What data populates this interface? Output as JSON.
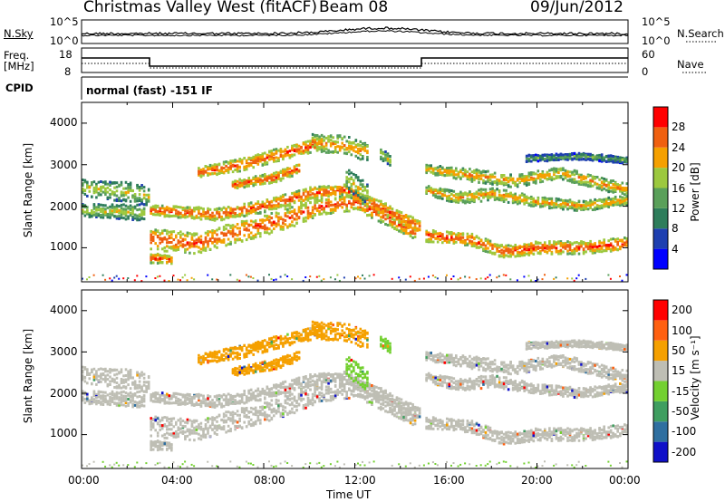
{
  "header": {
    "station": "Christmas Valley West (fitACF)",
    "beam": "Beam 08",
    "date": "09/Jun/2012"
  },
  "top_panels": {
    "nsky_label": "N.Sky",
    "nsearch_label": "N.Search",
    "noise_ticks_left": [
      "10^5",
      "10^0"
    ],
    "noise_ticks_right": [
      "10^5",
      "10^0"
    ],
    "freq_label_1": "Freq.",
    "freq_label_2": "[MHz]",
    "freq_ticks": [
      "18",
      "8"
    ],
    "nave_label": "Nave",
    "nave_ticks": [
      "60",
      "0"
    ],
    "cpid_label": "CPID",
    "cpid_text": "normal (fast) -151 IF"
  },
  "chart_data": [
    {
      "type": "heatmap",
      "name": "power",
      "ylabel": "Slant Range [km]",
      "y_ticks": [
        "4000",
        "3000",
        "2000",
        "1000"
      ],
      "ylim": [
        180,
        4500
      ],
      "colorbar_label": "Power [dB]",
      "colorbar_ticks": [
        "28",
        "24",
        "20",
        "16",
        "12",
        "8",
        "4"
      ],
      "colors": [
        "#0000ff",
        "#1e3fb0",
        "#2e7d5b",
        "#5aa05a",
        "#9cc83e",
        "#f5a000",
        "#f06010",
        "#ff0000"
      ]
    },
    {
      "type": "heatmap",
      "name": "velocity",
      "ylabel": "Slant Range [km]",
      "y_ticks": [
        "4000",
        "3000",
        "2000",
        "1000"
      ],
      "ylim": [
        180,
        4500
      ],
      "colorbar_label": "Velocity [m s⁻¹]",
      "colorbar_ticks": [
        "200",
        "100",
        "50",
        "15",
        "-15",
        "-50",
        "-100",
        "-200"
      ],
      "colors": [
        "#1010c8",
        "#2f6fa0",
        "#3f9e60",
        "#73d030",
        "#bebeb4",
        "#f5a000",
        "#ff6010",
        "#ff0000"
      ]
    }
  ],
  "x_axis": {
    "xlabel": "Time UT",
    "ticks": [
      "00:00",
      "04:00",
      "08:00",
      "12:00",
      "16:00",
      "20:00",
      "00:00"
    ],
    "xlim": [
      0,
      24
    ]
  }
}
